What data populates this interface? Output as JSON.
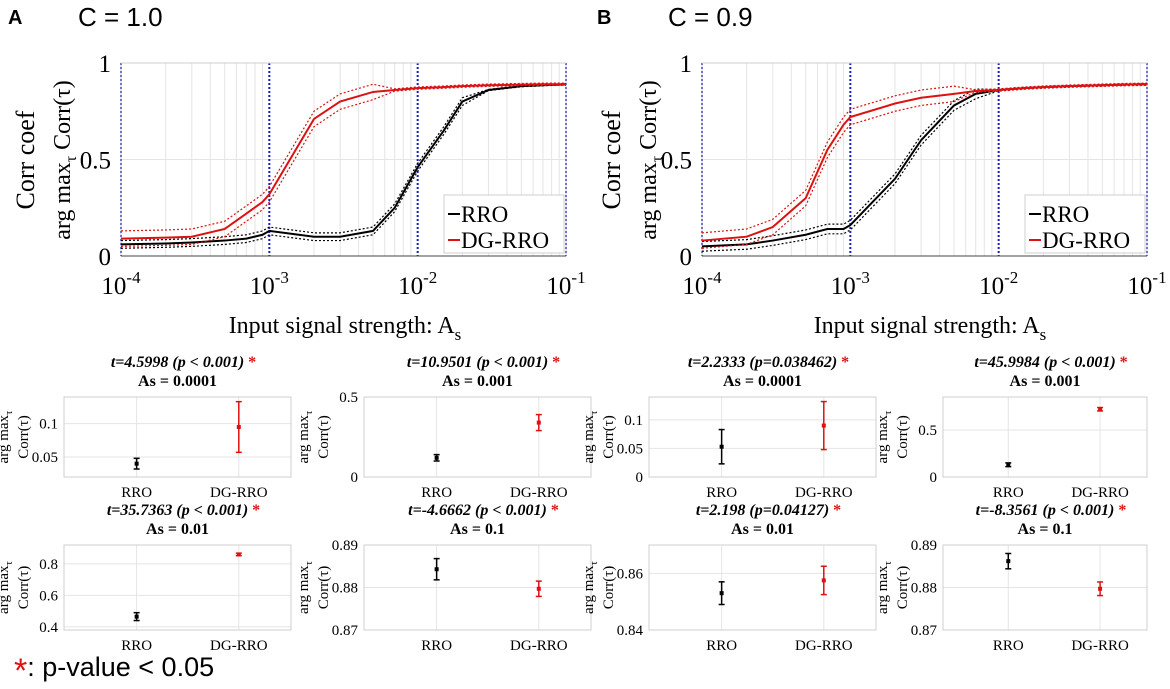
{
  "panels": [
    {
      "letter": "A",
      "title": "C = 1.0",
      "ylabel_line1": "Corr coef",
      "ylabel_line2": "arg max",
      "ylabel_sub": "τ",
      "ylabel_tail": "Corr(τ)",
      "xlabel": "Input signal strength: A",
      "xlabel_sub": "s",
      "legend": [
        "RRO",
        "DG-RRO"
      ]
    },
    {
      "letter": "B",
      "title": "C = 0.9",
      "ylabel_line1": "Corr coef",
      "ylabel_line2": "arg max",
      "ylabel_sub": "τ",
      "ylabel_tail": "Corr(τ)",
      "xlabel": "Input signal strength: A",
      "xlabel_sub": "s",
      "legend": [
        "RRO",
        "DG-RRO"
      ]
    }
  ],
  "footnote": {
    "star": "*",
    "text": ": p-value < 0.05"
  },
  "colors": {
    "rro": "#000000",
    "dgrro": "#dd1111",
    "vline": "#1a1acc",
    "grid": "#e4e4e4",
    "star": "#dd1111"
  },
  "chart_data": [
    {
      "type": "line",
      "panel": "A",
      "title": "C = 1.0",
      "xscale": "log",
      "xlim": [
        0.0001,
        0.1
      ],
      "ylim": [
        0,
        1
      ],
      "yticks": [
        "0",
        "0.5",
        "1"
      ],
      "xticks": [
        {
          "base": "10",
          "exp": "-4"
        },
        {
          "base": "10",
          "exp": "-3"
        },
        {
          "base": "10",
          "exp": "-2"
        },
        {
          "base": "10",
          "exp": "-1"
        }
      ],
      "vlines": [
        0.0001,
        0.001,
        0.01,
        0.1
      ],
      "x": [
        0.0001,
        0.0002,
        0.0003,
        0.0005,
        0.0007,
        0.0009,
        0.001,
        0.002,
        0.003,
        0.005,
        0.007,
        0.01,
        0.015,
        0.02,
        0.03,
        0.05,
        0.07,
        0.1
      ],
      "series": [
        {
          "name": "RRO",
          "values": [
            0.06,
            0.065,
            0.07,
            0.08,
            0.09,
            0.11,
            0.13,
            0.1,
            0.1,
            0.13,
            0.25,
            0.46,
            0.65,
            0.8,
            0.86,
            0.88,
            0.885,
            0.89
          ],
          "band": 0.02
        },
        {
          "name": "DG-RRO",
          "values": [
            0.09,
            0.095,
            0.1,
            0.14,
            0.22,
            0.28,
            0.32,
            0.71,
            0.8,
            0.85,
            0.86,
            0.87,
            0.875,
            0.88,
            0.885,
            0.888,
            0.89,
            0.89
          ],
          "band": 0.04
        }
      ]
    },
    {
      "type": "line",
      "panel": "B",
      "title": "C = 0.9",
      "xscale": "log",
      "xlim": [
        0.0001,
        0.1
      ],
      "ylim": [
        0,
        1
      ],
      "yticks": [
        "0",
        "0.5",
        "1"
      ],
      "xticks": [
        {
          "base": "10",
          "exp": "-4"
        },
        {
          "base": "10",
          "exp": "-3"
        },
        {
          "base": "10",
          "exp": "-2"
        },
        {
          "base": "10",
          "exp": "-1"
        }
      ],
      "vlines": [
        0.0001,
        0.001,
        0.01,
        0.1
      ],
      "x": [
        0.0001,
        0.0002,
        0.0003,
        0.0005,
        0.0007,
        0.0009,
        0.001,
        0.002,
        0.003,
        0.005,
        0.007,
        0.01,
        0.015,
        0.02,
        0.03,
        0.05,
        0.07,
        0.1
      ],
      "series": [
        {
          "name": "RRO",
          "values": [
            0.05,
            0.06,
            0.08,
            0.11,
            0.14,
            0.14,
            0.16,
            0.4,
            0.6,
            0.78,
            0.84,
            0.86,
            0.87,
            0.875,
            0.88,
            0.885,
            0.888,
            0.89
          ],
          "band": 0.025
        },
        {
          "name": "DG-RRO",
          "values": [
            0.08,
            0.1,
            0.15,
            0.3,
            0.55,
            0.68,
            0.72,
            0.79,
            0.82,
            0.84,
            0.855,
            0.86,
            0.87,
            0.875,
            0.88,
            0.885,
            0.888,
            0.89
          ],
          "band": 0.04
        }
      ]
    },
    {
      "type": "errorbar",
      "panel": "A",
      "stat": "t=4.5998 (p < 0.001)",
      "significant": "*",
      "title": "As = 0.0001",
      "ylabel_top": "arg max",
      "ylabel_sub": "τ",
      "ylabel": "Corr(τ)",
      "categories": [
        "RRO",
        "DG-RRO"
      ],
      "ylim": [
        0.02,
        0.14
      ],
      "yticks": [
        {
          "v": 0.05,
          "t": "0.05"
        },
        {
          "v": 0.1,
          "t": "0.1"
        }
      ],
      "series": [
        {
          "name": "RRO",
          "mean": 0.04,
          "err": 0.008
        },
        {
          "name": "DG-RRO",
          "mean": 0.095,
          "err": 0.038
        }
      ]
    },
    {
      "type": "errorbar",
      "panel": "A",
      "stat": "t=10.9501 (p < 0.001)",
      "significant": "*",
      "title": "As = 0.001",
      "ylabel_top": "arg max",
      "ylabel_sub": "τ",
      "ylabel": "Corr(τ)",
      "categories": [
        "RRO",
        "DG-RRO"
      ],
      "ylim": [
        0,
        0.5
      ],
      "yticks": [
        {
          "v": 0,
          "t": "0"
        },
        {
          "v": 0.5,
          "t": "0.5"
        }
      ],
      "series": [
        {
          "name": "RRO",
          "mean": 0.12,
          "err": 0.02
        },
        {
          "name": "DG-RRO",
          "mean": 0.34,
          "err": 0.05
        }
      ]
    },
    {
      "type": "errorbar",
      "panel": "B",
      "stat": "t=2.2333 (p=0.038462)",
      "significant": "*",
      "title": "As = 0.0001",
      "ylabel_top": "arg max",
      "ylabel_sub": "τ",
      "ylabel": "Corr(τ)",
      "categories": [
        "RRO",
        "DG-RRO"
      ],
      "ylim": [
        0,
        0.14
      ],
      "yticks": [
        {
          "v": 0,
          "t": "0"
        },
        {
          "v": 0.05,
          "t": "0.05"
        },
        {
          "v": 0.1,
          "t": "0.1"
        }
      ],
      "series": [
        {
          "name": "RRO",
          "mean": 0.053,
          "err": 0.03
        },
        {
          "name": "DG-RRO",
          "mean": 0.09,
          "err": 0.042
        }
      ]
    },
    {
      "type": "errorbar",
      "panel": "B",
      "stat": "t=45.9984 (p < 0.001)",
      "significant": "*",
      "title": "As = 0.001",
      "ylabel_top": "arg max",
      "ylabel_sub": "τ",
      "ylabel": "Corr(τ)",
      "categories": [
        "RRO",
        "DG-RRO"
      ],
      "ylim": [
        0,
        0.85
      ],
      "yticks": [
        {
          "v": 0,
          "t": "0"
        },
        {
          "v": 0.5,
          "t": "0.5"
        }
      ],
      "series": [
        {
          "name": "RRO",
          "mean": 0.13,
          "err": 0.02
        },
        {
          "name": "DG-RRO",
          "mean": 0.72,
          "err": 0.018
        }
      ]
    },
    {
      "type": "errorbar",
      "panel": "A",
      "stat": "t=35.7363 (p < 0.001)",
      "significant": "*",
      "title": "As = 0.01",
      "ylabel_top": "arg max",
      "ylabel_sub": "τ",
      "ylabel": "Corr(τ)",
      "categories": [
        "RRO",
        "DG-RRO"
      ],
      "ylim": [
        0.38,
        0.92
      ],
      "yticks": [
        {
          "v": 0.4,
          "t": "0.4"
        },
        {
          "v": 0.6,
          "t": "0.6"
        },
        {
          "v": 0.8,
          "t": "0.8"
        }
      ],
      "series": [
        {
          "name": "RRO",
          "mean": 0.465,
          "err": 0.025
        },
        {
          "name": "DG-RRO",
          "mean": 0.86,
          "err": 0.008
        }
      ]
    },
    {
      "type": "errorbar",
      "panel": "A",
      "stat": "t=-4.6662 (p < 0.001)",
      "significant": "*",
      "title": "As = 0.1",
      "ylabel_top": "arg max",
      "ylabel_sub": "τ",
      "ylabel": "Corr(τ)",
      "categories": [
        "RRO",
        "DG-RRO"
      ],
      "ylim": [
        0.87,
        0.89
      ],
      "yticks": [
        {
          "v": 0.87,
          "t": "0.87"
        },
        {
          "v": 0.88,
          "t": "0.88"
        },
        {
          "v": 0.89,
          "t": "0.89"
        }
      ],
      "series": [
        {
          "name": "RRO",
          "mean": 0.8843,
          "err": 0.0025
        },
        {
          "name": "DG-RRO",
          "mean": 0.8797,
          "err": 0.0018
        }
      ]
    },
    {
      "type": "errorbar",
      "panel": "B",
      "stat": "t=2.198 (p=0.04127)",
      "significant": "*",
      "title": "As = 0.01",
      "ylabel_top": "arg max",
      "ylabel_sub": "τ",
      "ylabel": "Corr(τ)",
      "categories": [
        "RRO",
        "DG-RRO"
      ],
      "ylim": [
        0.84,
        0.87
      ],
      "yticks": [
        {
          "v": 0.84,
          "t": "0.84"
        },
        {
          "v": 0.86,
          "t": "0.86"
        }
      ],
      "series": [
        {
          "name": "RRO",
          "mean": 0.853,
          "err": 0.004
        },
        {
          "name": "DG-RRO",
          "mean": 0.8575,
          "err": 0.005
        }
      ]
    },
    {
      "type": "errorbar",
      "panel": "B",
      "stat": "t=-8.3561 (p < 0.001)",
      "significant": "*",
      "title": "As = 0.1",
      "ylabel_top": "arg max",
      "ylabel_sub": "τ",
      "ylabel": "Corr(τ)",
      "categories": [
        "RRO",
        "DG-RRO"
      ],
      "ylim": [
        0.87,
        0.89
      ],
      "yticks": [
        {
          "v": 0.87,
          "t": "0.87"
        },
        {
          "v": 0.88,
          "t": "0.88"
        },
        {
          "v": 0.89,
          "t": "0.89"
        }
      ],
      "series": [
        {
          "name": "RRO",
          "mean": 0.8862,
          "err": 0.0018
        },
        {
          "name": "DG-RRO",
          "mean": 0.8797,
          "err": 0.0016
        }
      ]
    }
  ]
}
